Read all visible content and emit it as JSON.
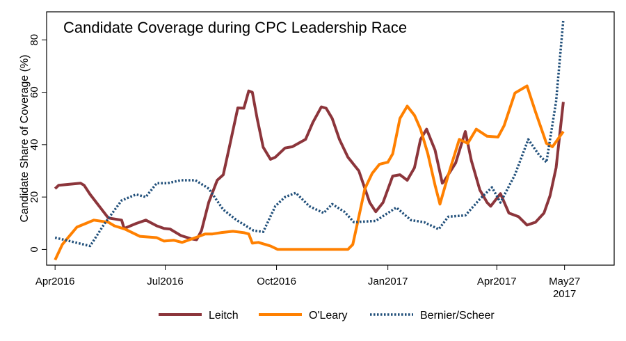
{
  "chart_data": {
    "type": "line",
    "title": "Candidate Coverage during CPC Leadership Race",
    "xlabel": "",
    "ylabel": "Candidate Share of Coverage (%)",
    "xlim": [
      "2016-03-25",
      "2017-07-07"
    ],
    "ylim": [
      -6,
      90.7
    ],
    "grid": false,
    "legend_position": "bottom",
    "x_ticks": [
      {
        "date": "2016-04-01",
        "label": [
          "Apr2016"
        ]
      },
      {
        "date": "2016-07-01",
        "label": [
          "Jul2016"
        ]
      },
      {
        "date": "2016-10-01",
        "label": [
          "Oct2016"
        ]
      },
      {
        "date": "2017-01-01",
        "label": [
          "Jan2017"
        ]
      },
      {
        "date": "2017-04-01",
        "label": [
          "Apr2017"
        ]
      },
      {
        "date": "2017-05-27",
        "label": [
          "May27",
          "2017"
        ]
      }
    ],
    "y_ticks": [
      0,
      20,
      40,
      60,
      80
    ],
    "series": [
      {
        "name": "Leitch",
        "color": "#8C353B",
        "style": "solid",
        "points": [
          [
            "2016-04-01",
            23.2
          ],
          [
            "2016-04-04",
            24.5
          ],
          [
            "2016-04-22",
            25.3
          ],
          [
            "2016-04-25",
            24.5
          ],
          [
            "2016-04-30",
            21
          ],
          [
            "2016-05-15",
            12
          ],
          [
            "2016-05-26",
            11.2
          ],
          [
            "2016-05-28",
            8
          ],
          [
            "2016-06-07",
            9.9
          ],
          [
            "2016-06-15",
            11.2
          ],
          [
            "2016-06-24",
            9
          ],
          [
            "2016-06-30",
            8
          ],
          [
            "2016-07-05",
            7.8
          ],
          [
            "2016-07-14",
            5.3
          ],
          [
            "2016-07-23",
            4
          ],
          [
            "2016-07-27",
            3.7
          ],
          [
            "2016-07-31",
            7.2
          ],
          [
            "2016-08-06",
            18
          ],
          [
            "2016-08-13",
            26.4
          ],
          [
            "2016-08-18",
            28.5
          ],
          [
            "2016-08-23",
            39
          ],
          [
            "2016-08-30",
            54
          ],
          [
            "2016-09-04",
            53.9
          ],
          [
            "2016-09-08",
            60.5
          ],
          [
            "2016-09-11",
            60
          ],
          [
            "2016-09-15",
            50
          ],
          [
            "2016-09-20",
            39
          ],
          [
            "2016-09-26",
            34.4
          ],
          [
            "2016-09-30",
            35.2
          ],
          [
            "2016-10-08",
            38.7
          ],
          [
            "2016-10-14",
            39.2
          ],
          [
            "2016-10-25",
            42
          ],
          [
            "2016-10-31",
            48.5
          ],
          [
            "2016-11-07",
            54.4
          ],
          [
            "2016-11-11",
            53.9
          ],
          [
            "2016-11-16",
            50
          ],
          [
            "2016-11-22",
            42
          ],
          [
            "2016-11-29",
            35.2
          ],
          [
            "2016-12-08",
            30
          ],
          [
            "2016-12-17",
            17.9
          ],
          [
            "2016-12-22",
            14.4
          ],
          [
            "2016-12-28",
            17.9
          ],
          [
            "2017-01-05",
            28
          ],
          [
            "2017-01-11",
            28.5
          ],
          [
            "2017-01-17",
            26.4
          ],
          [
            "2017-01-23",
            31.2
          ],
          [
            "2017-01-28",
            42
          ],
          [
            "2017-02-02",
            45.9
          ],
          [
            "2017-02-09",
            37.9
          ],
          [
            "2017-02-15",
            25.3
          ],
          [
            "2017-02-17",
            26.4
          ],
          [
            "2017-02-26",
            33
          ],
          [
            "2017-03-06",
            45
          ],
          [
            "2017-03-11",
            33.9
          ],
          [
            "2017-03-18",
            22.7
          ],
          [
            "2017-03-24",
            17.9
          ],
          [
            "2017-03-27",
            16.5
          ],
          [
            "2017-04-04",
            21.3
          ],
          [
            "2017-04-11",
            13.9
          ],
          [
            "2017-04-19",
            12.5
          ],
          [
            "2017-04-26",
            9.3
          ],
          [
            "2017-05-03",
            10.4
          ],
          [
            "2017-05-10",
            13.9
          ],
          [
            "2017-05-15",
            20.5
          ],
          [
            "2017-05-20",
            31.2
          ],
          [
            "2017-05-26",
            56.3
          ]
        ]
      },
      {
        "name": "O'Leary",
        "color": "#FF8000",
        "style": "solid",
        "points": [
          [
            "2016-04-01",
            -4
          ],
          [
            "2016-04-07",
            1.9
          ],
          [
            "2016-04-19",
            8.5
          ],
          [
            "2016-05-03",
            11.2
          ],
          [
            "2016-05-15",
            10.4
          ],
          [
            "2016-05-20",
            9
          ],
          [
            "2016-05-29",
            7.7
          ],
          [
            "2016-06-10",
            5
          ],
          [
            "2016-06-24",
            4.5
          ],
          [
            "2016-06-30",
            3.2
          ],
          [
            "2016-07-08",
            3.5
          ],
          [
            "2016-07-15",
            2.7
          ],
          [
            "2016-07-26",
            4.5
          ],
          [
            "2016-08-03",
            5.9
          ],
          [
            "2016-08-09",
            5.9
          ],
          [
            "2016-08-16",
            6.4
          ],
          [
            "2016-08-26",
            6.9
          ],
          [
            "2016-09-04",
            6.4
          ],
          [
            "2016-09-08",
            5.9
          ],
          [
            "2016-09-11",
            2.4
          ],
          [
            "2016-09-16",
            2.7
          ],
          [
            "2016-09-26",
            1.3
          ],
          [
            "2016-10-02",
            0
          ],
          [
            "2016-11-29",
            0
          ],
          [
            "2016-12-03",
            1.9
          ],
          [
            "2016-12-08",
            12.5
          ],
          [
            "2016-12-13",
            23.2
          ],
          [
            "2016-12-19",
            29
          ],
          [
            "2016-12-25",
            32.5
          ],
          [
            "2017-01-01",
            33.3
          ],
          [
            "2017-01-05",
            36.5
          ],
          [
            "2017-01-11",
            50
          ],
          [
            "2017-01-17",
            54.7
          ],
          [
            "2017-01-23",
            51.2
          ],
          [
            "2017-01-28",
            45.9
          ],
          [
            "2017-02-03",
            36.5
          ],
          [
            "2017-02-09",
            24.5
          ],
          [
            "2017-02-13",
            17.3
          ],
          [
            "2017-02-20",
            28.5
          ],
          [
            "2017-03-01",
            42
          ],
          [
            "2017-03-08",
            40.5
          ],
          [
            "2017-03-15",
            45.9
          ],
          [
            "2017-03-24",
            43.2
          ],
          [
            "2017-04-02",
            42.9
          ],
          [
            "2017-04-07",
            47.2
          ],
          [
            "2017-04-16",
            59.7
          ],
          [
            "2017-04-26",
            62.4
          ],
          [
            "2017-05-03",
            52.5
          ],
          [
            "2017-05-12",
            40.5
          ],
          [
            "2017-05-17",
            39.2
          ],
          [
            "2017-05-26",
            45
          ]
        ]
      },
      {
        "name": "Bernier/Scheer",
        "color": "#1F4E79",
        "style": "dotted",
        "points": [
          [
            "2016-04-01",
            4.5
          ],
          [
            "2016-04-13",
            3.2
          ],
          [
            "2016-04-30",
            1.3
          ],
          [
            "2016-05-12",
            9.9
          ],
          [
            "2016-05-26",
            18.7
          ],
          [
            "2016-06-07",
            21
          ],
          [
            "2016-06-15",
            20
          ],
          [
            "2016-06-24",
            25.3
          ],
          [
            "2016-07-03",
            25.3
          ],
          [
            "2016-07-14",
            26.4
          ],
          [
            "2016-07-26",
            26.4
          ],
          [
            "2016-08-06",
            23.2
          ],
          [
            "2016-08-18",
            15.2
          ],
          [
            "2016-08-29",
            11.2
          ],
          [
            "2016-09-12",
            7.2
          ],
          [
            "2016-09-20",
            6.7
          ],
          [
            "2016-09-30",
            16.5
          ],
          [
            "2016-10-08",
            20
          ],
          [
            "2016-10-17",
            21.6
          ],
          [
            "2016-10-28",
            16.5
          ],
          [
            "2016-11-09",
            13.9
          ],
          [
            "2016-11-16",
            17.3
          ],
          [
            "2016-11-26",
            14.4
          ],
          [
            "2016-12-04",
            10.4
          ],
          [
            "2016-12-22",
            10.9
          ],
          [
            "2017-01-08",
            16
          ],
          [
            "2017-01-20",
            11.2
          ],
          [
            "2017-01-31",
            10.4
          ],
          [
            "2017-02-12",
            7.7
          ],
          [
            "2017-02-20",
            12.5
          ],
          [
            "2017-03-06",
            13
          ],
          [
            "2017-03-18",
            19.2
          ],
          [
            "2017-03-28",
            23.7
          ],
          [
            "2017-04-04",
            17.9
          ],
          [
            "2017-04-16",
            28.5
          ],
          [
            "2017-04-27",
            42
          ],
          [
            "2017-05-06",
            36
          ],
          [
            "2017-05-12",
            33.3
          ],
          [
            "2017-05-20",
            56.5
          ],
          [
            "2017-05-26",
            87.7
          ]
        ]
      }
    ]
  }
}
